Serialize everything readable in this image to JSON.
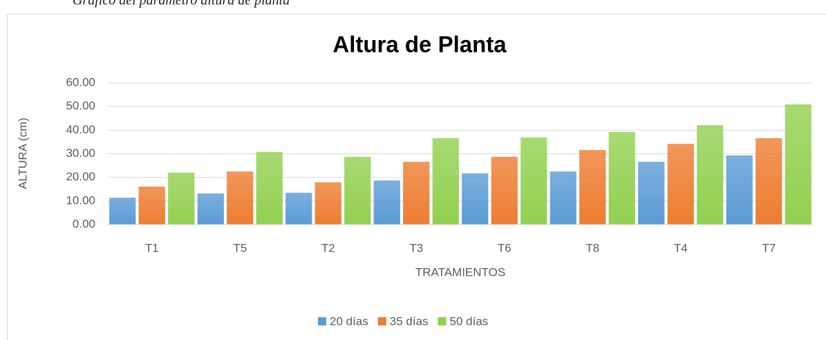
{
  "caption": "Gráfico del parámetro altura de planta",
  "chart_data": {
    "type": "bar",
    "title": "Altura de Planta",
    "x_label": "TRATAMIENTOS",
    "y_label": "ALTURA (cm)",
    "categories": [
      "T1",
      "T5",
      "T2",
      "T3",
      "T6",
      "T8",
      "T4",
      "T7"
    ],
    "series": [
      {
        "name": "20 días",
        "color": "#5b9bd5",
        "values": [
          11.4,
          13.2,
          13.5,
          18.7,
          21.7,
          22.5,
          26.6,
          29.3
        ]
      },
      {
        "name": "35 días",
        "color": "#ed7d31",
        "values": [
          16.1,
          22.5,
          17.9,
          26.6,
          28.7,
          31.6,
          34.2,
          36.6
        ]
      },
      {
        "name": "50 días",
        "color": "#92d050",
        "values": [
          22.0,
          30.7,
          28.7,
          36.6,
          36.9,
          39.2,
          42.1,
          50.9
        ]
      }
    ],
    "ylim": [
      0,
      60
    ],
    "yticks": [
      {
        "value": 0,
        "label": "0.00"
      },
      {
        "value": 10,
        "label": "10.00"
      },
      {
        "value": 20,
        "label": "20.00"
      },
      {
        "value": 30,
        "label": "30.00"
      },
      {
        "value": 40,
        "label": "40.00"
      },
      {
        "value": 50,
        "label": "50.00"
      },
      {
        "value": 60,
        "label": "60.00"
      }
    ],
    "grid": true,
    "legend": "bottom"
  }
}
